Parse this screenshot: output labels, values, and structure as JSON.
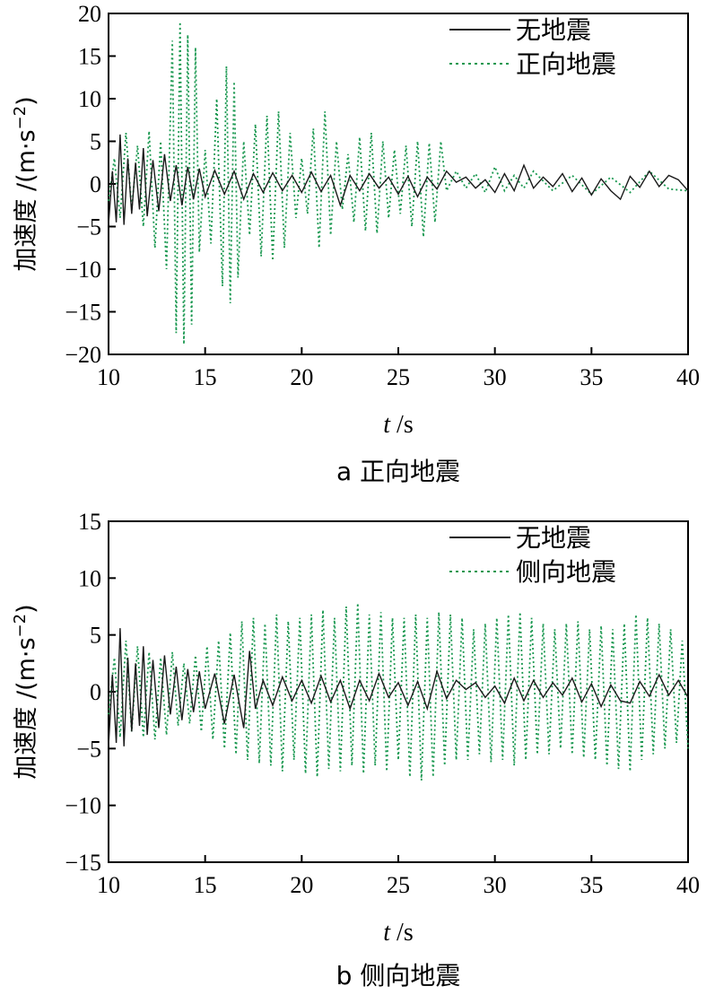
{
  "chart_data": [
    {
      "type": "line",
      "caption": "a 正向地震",
      "ylabel": "加速度 /(m·s",
      "ylabel_sup": "−2",
      "ylabel_close": ")",
      "xlabel_italic": "t",
      "xlabel_rest": " /s",
      "xlim": [
        10,
        40
      ],
      "ylim": [
        -20,
        20
      ],
      "xticks": [
        10,
        15,
        20,
        25,
        30,
        35,
        40
      ],
      "yticks": [
        20,
        15,
        10,
        5,
        0,
        -5,
        -10,
        -15,
        -20
      ],
      "ytick_labels": [
        "20",
        "15",
        "10",
        "5",
        "0",
        "−5",
        "−10",
        "−15",
        "−20"
      ],
      "legend_position": "top-right",
      "series": [
        {
          "name": "无地震",
          "style": "solid",
          "color": "#1a1a1a",
          "x": [
            10.0,
            10.2,
            10.4,
            10.6,
            10.8,
            11.0,
            11.2,
            11.4,
            11.6,
            11.8,
            12.0,
            12.3,
            12.6,
            12.9,
            13.2,
            13.5,
            13.8,
            14.1,
            14.4,
            14.7,
            15.0,
            15.5,
            16.0,
            16.5,
            17.0,
            17.5,
            18.0,
            18.5,
            19.0,
            19.5,
            20.0,
            20.5,
            21.0,
            21.5,
            22.0,
            22.5,
            23.0,
            23.5,
            24.0,
            24.5,
            25.0,
            25.5,
            26.0,
            26.5,
            27.0,
            27.5,
            28.0,
            28.5,
            29.0,
            29.5,
            30.0,
            30.5,
            31.0,
            31.5,
            32.0,
            32.5,
            33.0,
            33.5,
            34.0,
            34.5,
            35.0,
            35.5,
            36.0,
            36.5,
            37.0,
            37.5,
            38.0,
            38.5,
            39.0,
            39.5,
            40.0
          ],
          "y": [
            -4.8,
            1.5,
            -4.5,
            5.8,
            -4.8,
            3.0,
            -3.5,
            2.5,
            -3.0,
            4.2,
            -3.8,
            2.8,
            -3.2,
            3.5,
            -2.0,
            2.2,
            -2.5,
            2.0,
            -1.8,
            1.8,
            -1.5,
            1.6,
            -1.2,
            1.5,
            -1.8,
            1.2,
            -1.0,
            1.3,
            -0.8,
            1.0,
            -1.0,
            1.4,
            -0.9,
            1.0,
            -2.5,
            1.0,
            -0.8,
            1.2,
            -0.5,
            0.8,
            -1.2,
            0.9,
            -1.5,
            0.8,
            -0.6,
            1.5,
            0.2,
            0.8,
            -0.5,
            0.5,
            -1.0,
            1.2,
            -0.8,
            2.2,
            -0.5,
            0.8,
            -0.3,
            1.2,
            -0.9,
            0.7,
            -1.3,
            0.6,
            -0.8,
            -1.8,
            0.9,
            -0.4,
            1.5,
            -0.3,
            1.0,
            0.5,
            -0.8
          ]
        },
        {
          "name": "正向地震",
          "style": "dotted",
          "color": "#1a9850",
          "x": [
            10.0,
            10.3,
            10.6,
            10.9,
            11.2,
            11.5,
            11.8,
            12.1,
            12.4,
            12.7,
            13.0,
            13.3,
            13.5,
            13.7,
            13.9,
            14.1,
            14.3,
            14.5,
            14.7,
            15.0,
            15.3,
            15.6,
            15.9,
            16.1,
            16.3,
            16.5,
            16.7,
            17.0,
            17.3,
            17.6,
            17.9,
            18.2,
            18.5,
            18.8,
            19.1,
            19.4,
            19.7,
            20.0,
            20.3,
            20.6,
            20.9,
            21.2,
            21.5,
            21.8,
            22.1,
            22.4,
            22.7,
            23.0,
            23.3,
            23.6,
            23.9,
            24.2,
            24.5,
            24.8,
            25.1,
            25.4,
            25.7,
            26.0,
            26.3,
            26.6,
            26.9,
            27.2,
            27.5,
            28.0,
            28.5,
            29.0,
            29.5,
            30.0,
            30.5,
            31.0,
            31.5,
            32.0,
            33.0,
            34.0,
            35.0,
            36.0,
            37.0,
            38.0,
            39.0,
            40.0
          ],
          "y": [
            -2.0,
            3.0,
            -4.0,
            6.0,
            -3.0,
            4.5,
            -5.0,
            6.2,
            -7.5,
            5.0,
            -10.0,
            16.8,
            -17.5,
            19.0,
            -18.8,
            17.5,
            -16.5,
            16.0,
            -8.0,
            4.0,
            -7.0,
            10.0,
            -12.0,
            13.8,
            -14.0,
            12.0,
            -11.0,
            5.0,
            -6.0,
            7.0,
            -8.5,
            8.0,
            -9.0,
            8.5,
            -7.5,
            6.0,
            -4.0,
            3.0,
            -3.5,
            6.5,
            -7.5,
            8.5,
            -6.0,
            5.0,
            -3.0,
            3.5,
            -4.5,
            5.5,
            -5.5,
            6.0,
            -5.8,
            5.0,
            -4.0,
            4.0,
            -3.5,
            4.5,
            -5.0,
            5.0,
            -6.2,
            4.8,
            -4.5,
            5.0,
            -0.8,
            1.5,
            -0.5,
            1.2,
            -1.0,
            2.0,
            -0.8,
            1.0,
            -0.5,
            1.5,
            -0.8,
            1.0,
            -1.2,
            0.8,
            -1.0,
            1.5,
            -0.6,
            -0.8
          ]
        }
      ]
    },
    {
      "type": "line",
      "caption": "b 侧向地震",
      "ylabel": "加速度 /(m·s",
      "ylabel_sup": "−2",
      "ylabel_close": ")",
      "xlabel_italic": "t",
      "xlabel_rest": " /s",
      "xlim": [
        10,
        40
      ],
      "ylim": [
        -15,
        15
      ],
      "xticks": [
        10,
        15,
        20,
        25,
        30,
        35,
        40
      ],
      "yticks": [
        15,
        10,
        5,
        0,
        -5,
        -10,
        -15
      ],
      "ytick_labels": [
        "15",
        "10",
        "5",
        "0",
        "−5",
        "−10",
        "−15"
      ],
      "legend_position": "top-right",
      "series": [
        {
          "name": "无地震",
          "style": "solid",
          "color": "#1a1a1a",
          "x": [
            10.0,
            10.2,
            10.4,
            10.6,
            10.8,
            11.0,
            11.2,
            11.4,
            11.6,
            11.8,
            12.0,
            12.3,
            12.6,
            12.9,
            13.2,
            13.5,
            13.8,
            14.1,
            14.4,
            14.7,
            15.0,
            15.5,
            16.0,
            16.5,
            17.0,
            17.3,
            17.6,
            18.0,
            18.5,
            19.0,
            19.5,
            20.0,
            20.5,
            21.0,
            21.5,
            22.0,
            22.5,
            23.0,
            23.5,
            24.0,
            24.5,
            25.0,
            25.5,
            26.0,
            26.5,
            27.0,
            27.5,
            28.0,
            28.5,
            29.0,
            29.5,
            30.0,
            30.5,
            31.0,
            31.5,
            32.0,
            32.5,
            33.0,
            33.5,
            34.0,
            34.5,
            35.0,
            35.5,
            36.0,
            36.5,
            37.0,
            37.5,
            38.0,
            38.5,
            39.0,
            39.5,
            40.0
          ],
          "y": [
            -4.8,
            1.5,
            -4.5,
            5.6,
            -4.8,
            3.0,
            -3.5,
            2.5,
            -3.0,
            4.0,
            -3.8,
            2.8,
            -3.2,
            3.2,
            -2.0,
            2.2,
            -2.5,
            2.0,
            -1.8,
            1.8,
            -1.5,
            1.6,
            -2.8,
            1.5,
            -3.2,
            3.6,
            -1.5,
            1.0,
            -1.2,
            1.3,
            -0.8,
            1.0,
            -1.0,
            1.4,
            -0.9,
            1.0,
            -1.5,
            1.0,
            -0.8,
            1.6,
            -0.5,
            0.8,
            -1.2,
            0.9,
            -1.5,
            1.8,
            -0.6,
            1.0,
            0.2,
            0.8,
            -0.5,
            0.5,
            -1.0,
            1.2,
            -0.8,
            1.0,
            -0.5,
            0.8,
            -0.3,
            1.2,
            -0.9,
            0.7,
            -1.3,
            0.6,
            -0.8,
            -1.0,
            0.9,
            -0.4,
            1.5,
            -0.3,
            1.0,
            -0.5
          ]
        },
        {
          "name": "侧向地震",
          "style": "dotted",
          "color": "#1a9850",
          "x": [
            10.0,
            10.3,
            10.6,
            10.9,
            11.2,
            11.5,
            11.8,
            12.1,
            12.4,
            12.7,
            13.0,
            13.3,
            13.6,
            13.9,
            14.2,
            14.5,
            14.8,
            15.1,
            15.4,
            15.7,
            16.0,
            16.3,
            16.6,
            16.9,
            17.2,
            17.5,
            17.8,
            18.1,
            18.4,
            18.7,
            19.0,
            19.3,
            19.6,
            19.9,
            20.2,
            20.5,
            20.8,
            21.1,
            21.4,
            21.7,
            22.0,
            22.3,
            22.6,
            22.9,
            23.2,
            23.5,
            23.8,
            24.1,
            24.4,
            24.7,
            25.0,
            25.3,
            25.6,
            25.9,
            26.2,
            26.5,
            26.8,
            27.1,
            27.4,
            27.7,
            28.0,
            28.3,
            28.6,
            28.9,
            29.2,
            29.5,
            29.8,
            30.1,
            30.4,
            30.7,
            31.0,
            31.3,
            31.6,
            31.9,
            32.2,
            32.5,
            32.8,
            33.1,
            33.4,
            33.7,
            34.0,
            34.3,
            34.6,
            34.9,
            35.2,
            35.5,
            35.8,
            36.1,
            36.4,
            36.7,
            37.0,
            37.3,
            37.6,
            37.9,
            38.2,
            38.5,
            38.8,
            39.1,
            39.4,
            39.7,
            40.0
          ],
          "y": [
            -2.0,
            3.0,
            -4.0,
            4.5,
            -3.5,
            4.0,
            -4.0,
            3.5,
            -4.2,
            3.0,
            -3.8,
            3.5,
            -3.0,
            2.5,
            -2.8,
            3.2,
            -3.5,
            4.0,
            -4.2,
            4.5,
            -5.0,
            5.2,
            -5.5,
            6.2,
            -6.0,
            6.5,
            -6.3,
            6.0,
            -6.5,
            6.8,
            -7.0,
            6.2,
            -6.0,
            6.5,
            -7.2,
            6.8,
            -7.5,
            7.2,
            -6.8,
            6.5,
            -7.0,
            7.5,
            -6.5,
            7.8,
            -7.2,
            6.8,
            -6.5,
            7.0,
            -7.0,
            6.5,
            -6.0,
            6.5,
            -7.5,
            6.8,
            -7.8,
            6.5,
            -7.5,
            7.0,
            -6.5,
            6.8,
            -6.0,
            6.5,
            -6.0,
            5.5,
            -5.5,
            6.0,
            -6.2,
            6.5,
            -6.0,
            6.8,
            -6.5,
            7.0,
            -6.0,
            6.5,
            -5.5,
            6.0,
            -5.5,
            5.5,
            -5.0,
            6.0,
            -5.5,
            6.2,
            -5.8,
            5.5,
            -6.0,
            5.8,
            -6.5,
            5.5,
            -6.8,
            6.0,
            -7.0,
            6.8,
            -6.0,
            6.5,
            -5.5,
            6.0,
            -5.0,
            5.5,
            -4.5,
            4.5,
            -5.0
          ]
        }
      ]
    }
  ]
}
